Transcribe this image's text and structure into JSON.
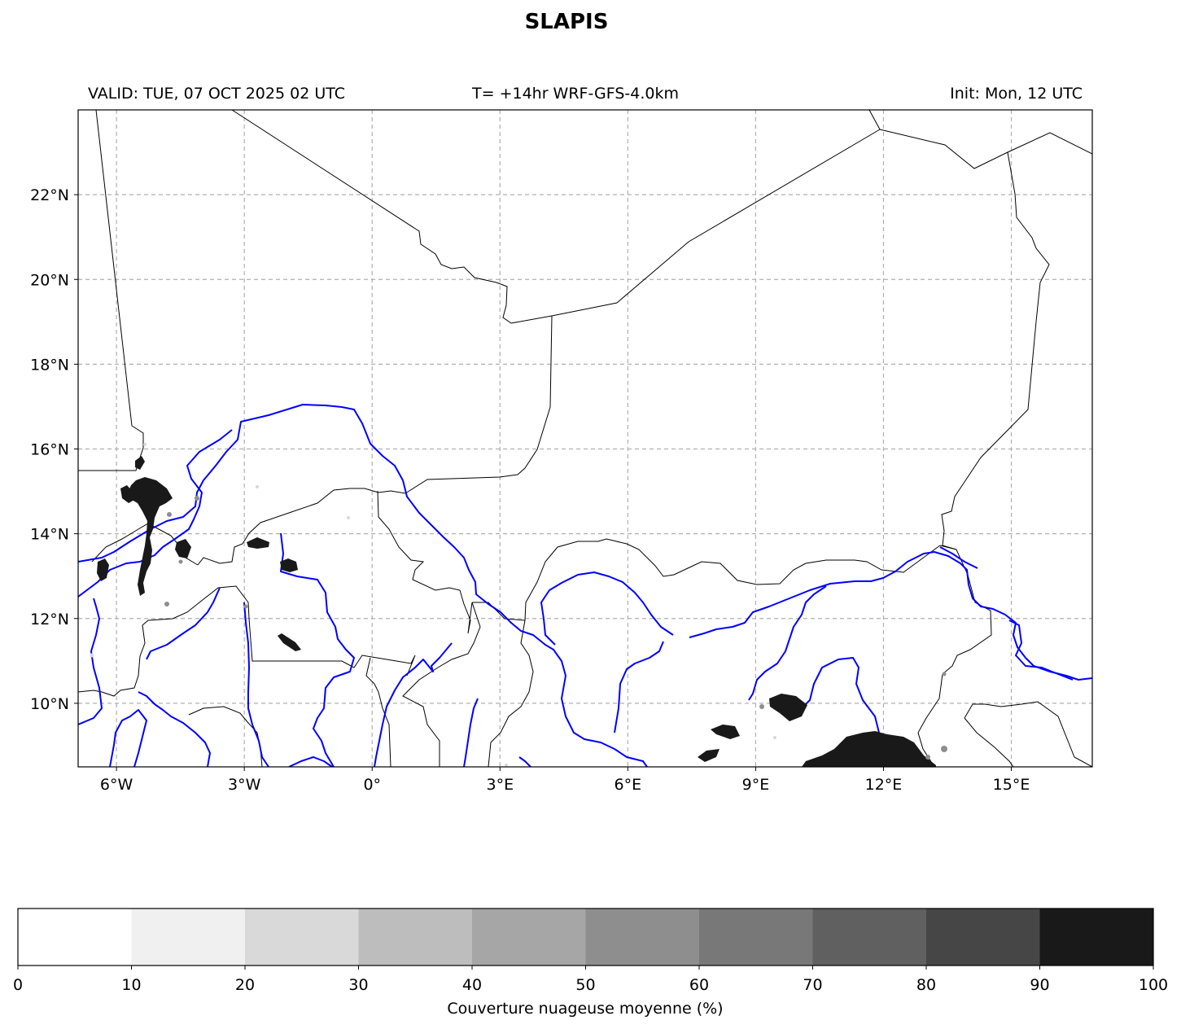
{
  "title": "SLAPIS",
  "header": {
    "valid": "VALID: TUE, 07 OCT 2025 02 UTC",
    "model": "T= +14hr WRF-GFS-4.0km",
    "init": "Init: Mon, 12 UTC"
  },
  "map": {
    "lon_range": [
      -6.9,
      16.9
    ],
    "lat_range": [
      8.5,
      24.0
    ],
    "lon_ticks": [
      {
        "value": -6,
        "label": "6°W"
      },
      {
        "value": -3,
        "label": "3°W"
      },
      {
        "value": 0,
        "label": "0°"
      },
      {
        "value": 3,
        "label": "3°E"
      },
      {
        "value": 6,
        "label": "6°E"
      },
      {
        "value": 9,
        "label": "9°E"
      },
      {
        "value": 12,
        "label": "12°E"
      },
      {
        "value": 15,
        "label": "15°E"
      }
    ],
    "lat_ticks": [
      {
        "value": 22,
        "label": "22°N"
      },
      {
        "value": 20,
        "label": "20°N"
      },
      {
        "value": 18,
        "label": "18°N"
      },
      {
        "value": 16,
        "label": "16°N"
      },
      {
        "value": 14,
        "label": "14°N"
      },
      {
        "value": 12,
        "label": "12°N"
      },
      {
        "value": 10,
        "label": "10°N"
      }
    ],
    "colors": {
      "border": "#000000",
      "river": "#0000ff",
      "grid": "#b0b0b0"
    }
  },
  "colorbar": {
    "label": "Couverture nuageuse moyenne (%)",
    "ticks": [
      "0",
      "10",
      "20",
      "30",
      "40",
      "50",
      "60",
      "70",
      "80",
      "90",
      "100"
    ],
    "colors": [
      "#ffffff",
      "#f0f0f0",
      "#d9d9d9",
      "#bdbdbd",
      "#a6a6a6",
      "#8e8e8e",
      "#787878",
      "#606060",
      "#464646",
      "#191919"
    ]
  }
}
